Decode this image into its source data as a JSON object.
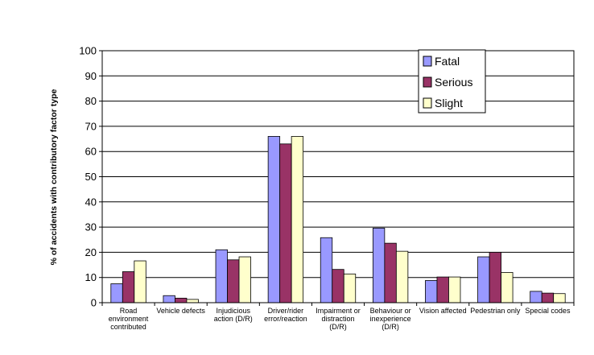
{
  "chart_data": {
    "type": "bar",
    "ylabel": "% of accidents with contributory factor type",
    "ylim": [
      0,
      100
    ],
    "yticks": [
      0,
      10,
      20,
      30,
      40,
      50,
      60,
      70,
      80,
      90,
      100
    ],
    "grid": true,
    "legend_position": "top-right",
    "categories": [
      [
        "Road",
        "environment",
        "contributed"
      ],
      [
        "Vehicle defects"
      ],
      [
        "Injudicious",
        "action (D/R)"
      ],
      [
        "Driver/rider",
        "error/reaction"
      ],
      [
        "Impairment or",
        "distraction",
        "(D/R)"
      ],
      [
        "Behaviour or",
        "inexperience",
        "(D/R)"
      ],
      [
        "Vision affected"
      ],
      [
        "Pedestrian only"
      ],
      [
        "Special codes"
      ]
    ],
    "series": [
      {
        "name": "Fatal",
        "color": "#9999FF",
        "values": [
          7.5,
          2.8,
          21,
          66,
          25.8,
          29.6,
          8.8,
          18.2,
          4.5
        ]
      },
      {
        "name": "Serious",
        "color": "#993366",
        "values": [
          12.3,
          1.8,
          17,
          63,
          13.2,
          23.6,
          10.2,
          20,
          3.8
        ]
      },
      {
        "name": "Slight",
        "color": "#FFFFCC",
        "values": [
          16.6,
          1.3,
          18.2,
          66,
          11.4,
          20.4,
          10.2,
          12,
          3.6
        ]
      }
    ]
  }
}
